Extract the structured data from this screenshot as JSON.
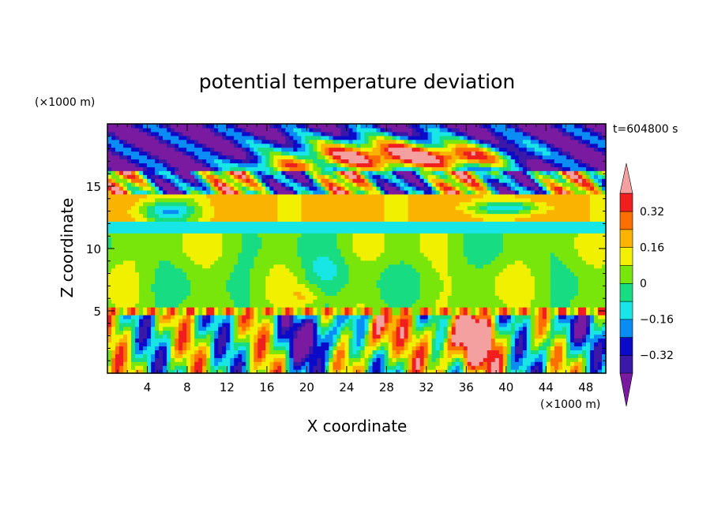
{
  "chart_data": {
    "type": "heatmap",
    "title": "potential temperature deviation",
    "xlabel": "X coordinate",
    "ylabel": "Z coordinate",
    "x_unit": "(×1000 m)",
    "y_unit": "(×1000 m)",
    "time_label": "t=604800 s",
    "xlim": [
      0,
      50
    ],
    "ylim": [
      0,
      20
    ],
    "x_ticks": [
      4,
      8,
      12,
      16,
      20,
      24,
      28,
      32,
      36,
      40,
      44,
      48
    ],
    "y_ticks": [
      5,
      10,
      15
    ],
    "colorbar": {
      "levels": [
        -0.4,
        -0.32,
        -0.24,
        -0.16,
        -0.08,
        0,
        0.08,
        0.16,
        0.24,
        0.32,
        0.4
      ],
      "labelled_levels": [
        0.32,
        0.16,
        0,
        -0.16,
        -0.32
      ],
      "level_labels": [
        "0.32",
        "0.16",
        "0",
        "−0.16",
        "−0.32"
      ],
      "colors": [
        "#7a1aa0",
        "#3a18a8",
        "#0a0ac8",
        "#0a8cf5",
        "#18e6e6",
        "#18dc82",
        "#78e60a",
        "#f0f000",
        "#fab400",
        "#ff6e00",
        "#f01e1e",
        "#f5a0a0"
      ],
      "extend": "both"
    }
  }
}
